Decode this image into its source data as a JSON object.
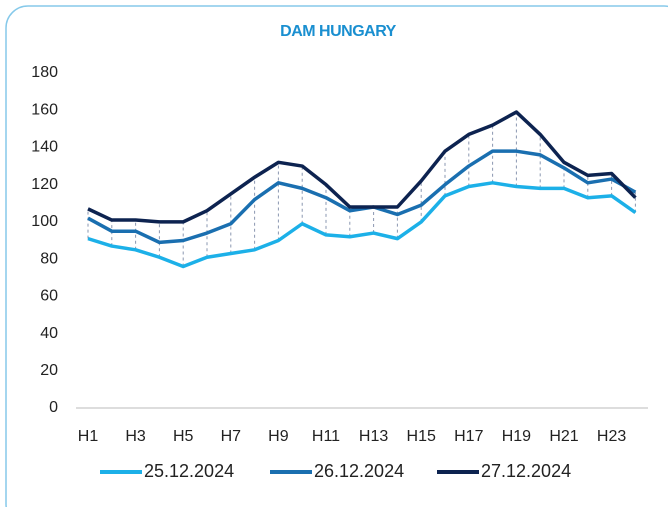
{
  "chart_data": {
    "type": "line",
    "title": "DAM HUNGARY",
    "categories": [
      "H1",
      null,
      "H3",
      null,
      "H5",
      null,
      "H7",
      null,
      "H9",
      null,
      "H11",
      null,
      "H13",
      null,
      "H15",
      null,
      "H17",
      null,
      "H19",
      null,
      "H21",
      null,
      "H23",
      null
    ],
    "series": [
      {
        "name": "25.12.2024",
        "color": "#1cb0e8",
        "values": [
          91,
          87,
          85,
          81,
          76,
          81,
          83,
          85,
          90,
          99,
          93,
          92,
          94,
          91,
          100,
          114,
          119,
          121,
          119,
          118,
          118,
          113,
          114,
          105
        ]
      },
      {
        "name": "26.12.2024",
        "color": "#1a6fb0",
        "values": [
          102,
          95,
          95,
          89,
          90,
          94,
          99,
          112,
          121,
          118,
          113,
          106,
          108,
          104,
          109,
          120,
          130,
          138,
          138,
          136,
          129,
          121,
          123,
          116
        ]
      },
      {
        "name": "27.12.2024",
        "color": "#0d2350",
        "values": [
          107,
          101,
          101,
          100,
          100,
          106,
          115,
          124,
          132,
          130,
          120,
          108,
          108,
          108,
          122,
          138,
          147,
          152,
          159,
          147,
          132,
          125,
          126,
          113
        ]
      }
    ],
    "ylim": [
      0,
      180
    ],
    "yticks": [
      0,
      20,
      40,
      60,
      80,
      100,
      120,
      140,
      160,
      180
    ],
    "grid": false
  }
}
